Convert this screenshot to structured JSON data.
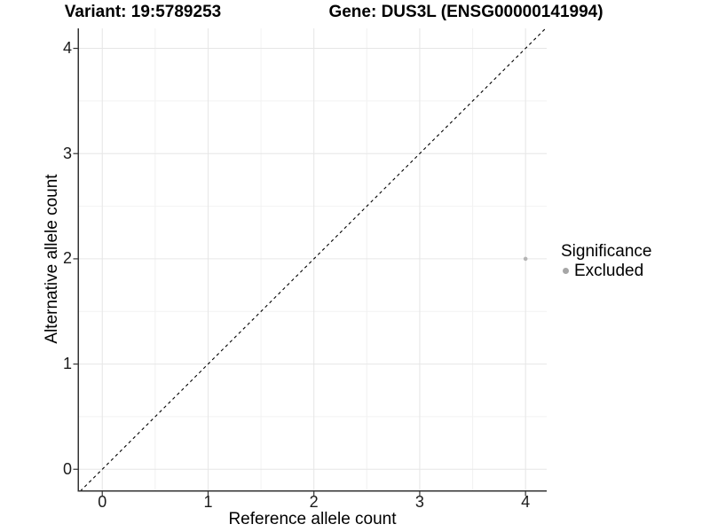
{
  "titles": {
    "variant": "Variant: 19:5789253",
    "gene": "Gene: DUS3L (ENSG00000141994)"
  },
  "axes": {
    "x_label": "Reference allele count",
    "y_label": "Alternative allele count",
    "x_tick_labels": [
      "0",
      "1",
      "2",
      "3",
      "4"
    ],
    "y_tick_labels": [
      "0",
      "1",
      "2",
      "3",
      "4"
    ]
  },
  "legend": {
    "title": "Significance",
    "items": [
      {
        "label": "Excluded",
        "color": "#a6a6a6"
      }
    ]
  },
  "chart_data": {
    "type": "scatter",
    "title": "Variant: 19:5789253   Gene: DUS3L (ENSG00000141994)",
    "xlabel": "Reference allele count",
    "ylabel": "Alternative allele count",
    "x_major_ticks": [
      0,
      1,
      2,
      3,
      4
    ],
    "y_major_ticks": [
      0,
      1,
      2,
      3,
      4
    ],
    "xlim": [
      -0.22,
      4.2
    ],
    "ylim": [
      -0.2,
      4.19
    ],
    "grid": "major+minor",
    "legend_position": "right",
    "series": [
      {
        "name": "Excluded",
        "color": "#b5b5b5",
        "point_radius": 2.3,
        "points": [
          {
            "x": 4,
            "y": 2
          }
        ]
      }
    ],
    "reference_line": {
      "type": "identity y=x",
      "style": "dashed",
      "color": "#000000"
    }
  },
  "colors": {
    "background": "#ffffff",
    "grid_major": "#e6e6e6",
    "grid_minor": "#f2f2f2",
    "axis_line": "#333333",
    "tick_mark": "#333333"
  }
}
